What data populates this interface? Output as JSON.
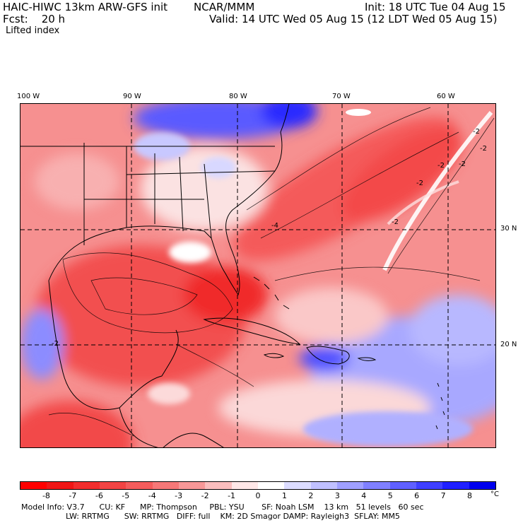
{
  "header": {
    "line1_left": "HAIC-HIWC 13km ARW-GFS init",
    "line1_mid": "NCAR/MMM",
    "line1_right": "Init: 18 UTC Tue 04 Aug 15",
    "line2_left": "Fcst:    20 h",
    "line2_right": "Valid: 14 UTC Wed 05 Aug 15 (12 LDT Wed 05 Aug 15)",
    "field_name": "Lifted index"
  },
  "map": {
    "longitude_labels": [
      "100 W",
      "90 W",
      "80 W",
      "70 W",
      "60 W"
    ],
    "latitude_labels": [
      "30 N",
      "20 N"
    ],
    "contour_labels": [
      "-2",
      "-2",
      "-2",
      "-2",
      "-2",
      "-2",
      "-4",
      "-2"
    ]
  },
  "legend": {
    "values": [
      "-8",
      "-7",
      "-6",
      "-5",
      "-4",
      "-3",
      "-2",
      "-1",
      "0",
      "1",
      "2",
      "3",
      "4",
      "5",
      "6",
      "7",
      "8"
    ],
    "unit": "°C",
    "colors": [
      "#ff0000",
      "#f01616",
      "#f22d2d",
      "#f34444",
      "#f45c5c",
      "#f67878",
      "#f89898",
      "#fbbebe",
      "#ffe8e8",
      "#ffffff",
      "#dcdcff",
      "#c0c0ff",
      "#a0a0ff",
      "#8080ff",
      "#6060ff",
      "#4040ff",
      "#2020ff",
      "#0000ee"
    ]
  },
  "model_info": {
    "line1": "Model Info: V3.7      CU: KF      MP: Thompson     PBL: YSU       SF: Noah LSM    13 km   51 levels   60 sec",
    "line2": "                  LW: RRTMG      SW: RRTMG   DIFF: full    KM: 2D Smagor DAMP: Rayleigh3  SFLAY: MM5"
  }
}
